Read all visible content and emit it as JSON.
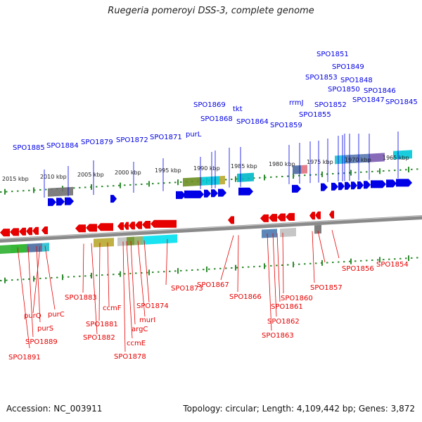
{
  "header": {
    "title": "Ruegeria pomeroyi DSS-3, complete genome"
  },
  "footer": {
    "accession": "Accession: NC_003911",
    "topology": "Topology: circular; Length: 4,109,442 bp; Genes: 3,872"
  },
  "colors": {
    "forward_strand": "#0000e6",
    "reverse_strand": "#e60000",
    "backbone": "#8a8a8a",
    "tick": "#2e8b2e"
  },
  "scale_labels": [
    "2015 kbp",
    "2010 kbp",
    "2005 kbp",
    "2000 kbp",
    "1995 kbp",
    "1990 kbp",
    "1985 kbp",
    "1980 kbp",
    "1975 kbp",
    "1970 kbp",
    "1965 kbp"
  ],
  "forward_genes": [
    "SPO1885",
    "SPO1884",
    "SPO1879",
    "SPO1872",
    "SPO1871",
    "purL",
    "SPO1869",
    "SPO1868",
    "tkt",
    "SPO1864",
    "SPO1859",
    "rrmJ",
    "SPO1855",
    "SPO1853",
    "SPO1852",
    "SPO1851",
    "SPO1850",
    "SPO1849",
    "SPO1848",
    "SPO1847",
    "SPO1846",
    "SPO1845"
  ],
  "reverse_genes": [
    "SPO1891",
    "SPO1889",
    "purS",
    "purQ",
    "purC",
    "SPO1883",
    "SPO1882",
    "SPO1881",
    "ccmF",
    "SPO1878",
    "ccmE",
    "argC",
    "murI",
    "SPO1874",
    "SPO1873",
    "SPO1867",
    "SPO1866",
    "SPO1863",
    "SPO1862",
    "SPO1861",
    "SPO1860",
    "SPO1857",
    "SPO1856",
    "SPO1854"
  ]
}
